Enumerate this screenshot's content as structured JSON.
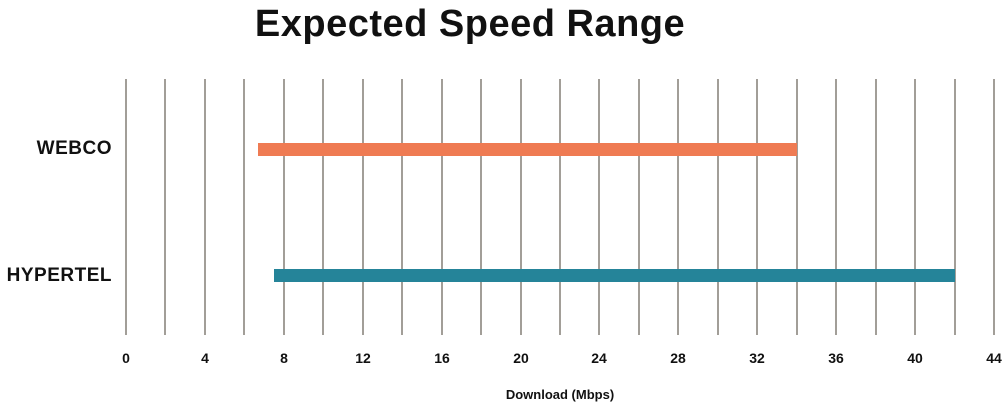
{
  "title": "Expected Speed Range",
  "xlabel": "Download (Mbps)",
  "colors": {
    "webco_bar": "#EF7B53",
    "hypertel_bar": "#258499",
    "gridline": "#A29E98",
    "text": "#111111",
    "background": "#FFFFFF"
  },
  "chart_data": {
    "type": "bar",
    "orientation": "horizontal",
    "title": "Expected Speed Range",
    "xlabel": "Download (Mbps)",
    "categories": [
      "WEBCO",
      "HYPERTEL"
    ],
    "series": [
      {
        "name": "WEBCO",
        "range_mbps": [
          6.7,
          34
        ],
        "color": "#EF7B53"
      },
      {
        "name": "HYPERTEL",
        "range_mbps": [
          7.5,
          42
        ],
        "color": "#258499"
      }
    ],
    "xlim": [
      0,
      44
    ],
    "x_major_ticks": [
      0,
      4,
      8,
      12,
      16,
      20,
      24,
      28,
      32,
      36,
      40,
      44
    ],
    "x_gridline_step": 2,
    "grid": true,
    "legend": false,
    "axis_line": false
  }
}
